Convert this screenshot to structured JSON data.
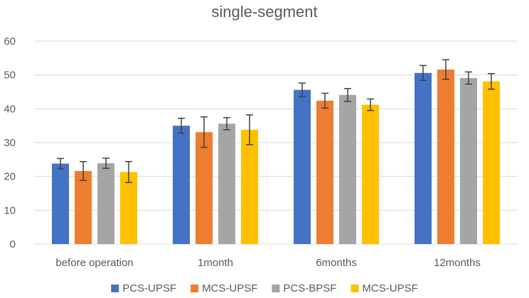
{
  "chart_data": {
    "type": "bar",
    "title": "single-segment",
    "xlabel": "",
    "ylabel": "",
    "ylim": [
      0,
      60
    ],
    "yticks": [
      0,
      10,
      20,
      30,
      40,
      50,
      60
    ],
    "grid": true,
    "legend_position": "bottom",
    "categories": [
      "before operation",
      "1month",
      "6months",
      "12months"
    ],
    "series": [
      {
        "name": "PCS-UPSF",
        "color": "#4472c4",
        "values": [
          23.8,
          35.0,
          45.6,
          50.6
        ],
        "errors": [
          1.5,
          2.2,
          2.0,
          2.2
        ]
      },
      {
        "name": "MCS-UPSF",
        "color": "#ed7d31",
        "values": [
          21.6,
          33.1,
          42.4,
          51.6
        ],
        "errors": [
          2.8,
          4.5,
          2.2,
          2.9
        ]
      },
      {
        "name": "PCS-BPSF",
        "color": "#a5a5a5",
        "values": [
          23.9,
          35.6,
          44.1,
          49.1
        ],
        "errors": [
          1.5,
          1.8,
          1.9,
          1.8
        ]
      },
      {
        "name": "MCS-UPSF",
        "color": "#ffc000",
        "values": [
          21.3,
          33.8,
          41.2,
          48.1
        ],
        "errors": [
          3.1,
          4.4,
          1.7,
          2.3
        ]
      }
    ]
  }
}
